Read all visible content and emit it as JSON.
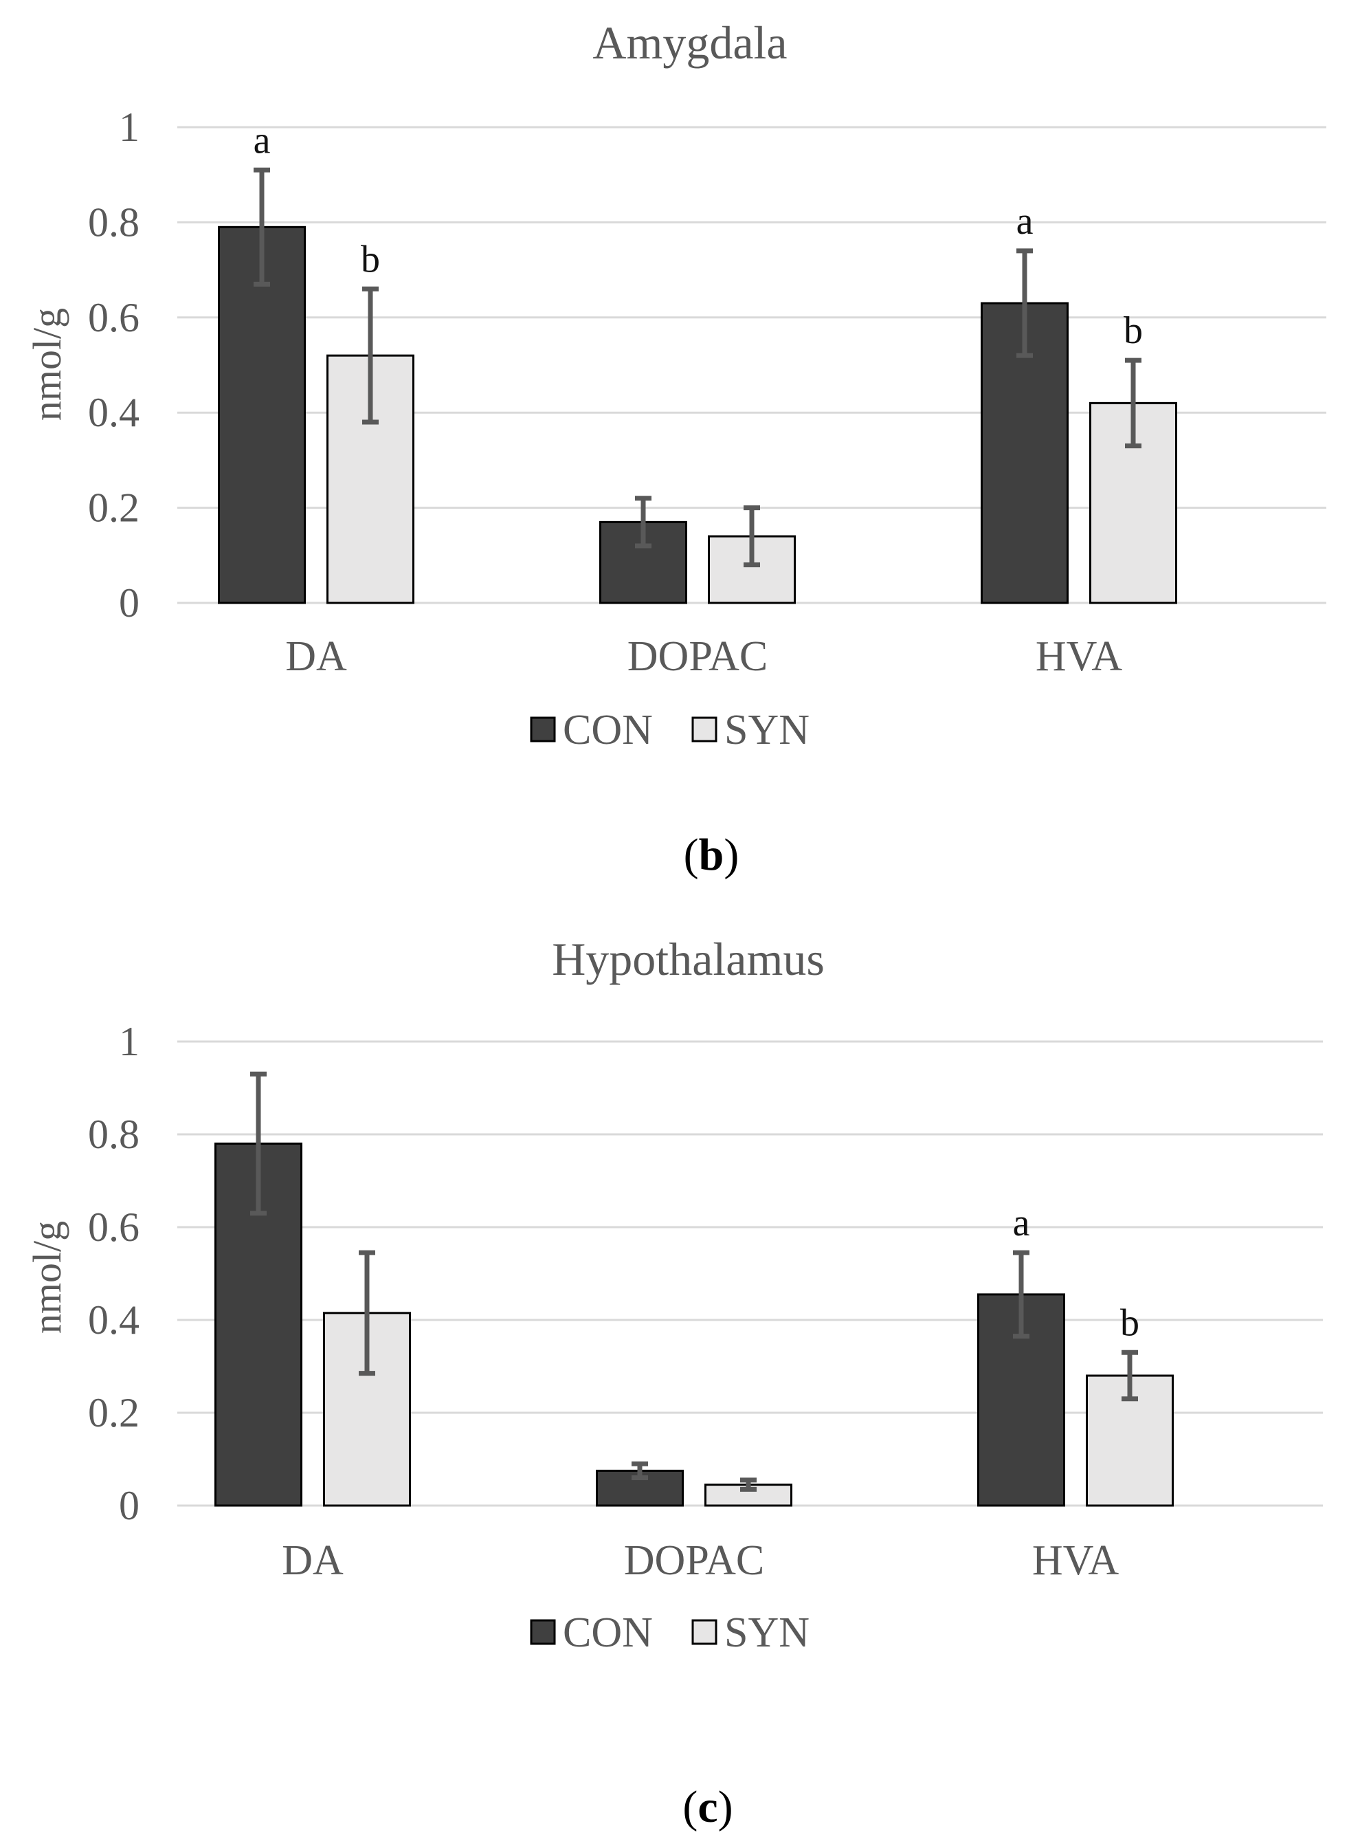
{
  "colors": {
    "con": "#404040",
    "syn": "#e7e6e6",
    "text": "#595959",
    "grid": "#d9d9d9",
    "error": "#595959"
  },
  "chart_data": [
    {
      "type": "bar",
      "title": "Amygdala",
      "ylabel": "nmol/g",
      "xlabel": "",
      "ylim": [
        0,
        1
      ],
      "yticks": [
        "0",
        "0.2",
        "0.4",
        "0.6",
        "0.8",
        "1"
      ],
      "categories": [
        "DA",
        "DOPAC",
        "HVA"
      ],
      "series": [
        {
          "name": "CON",
          "values": [
            0.79,
            0.17,
            0.63
          ],
          "errors": [
            0.12,
            0.05,
            0.11
          ],
          "letters": [
            "a",
            "",
            "a"
          ]
        },
        {
          "name": "SYN",
          "values": [
            0.52,
            0.14,
            0.42
          ],
          "errors": [
            0.14,
            0.06,
            0.09
          ],
          "letters": [
            "b",
            "",
            "b"
          ]
        }
      ],
      "legend": {
        "position": "bottom",
        "entries": [
          "CON",
          "SYN"
        ]
      },
      "grid": true
    },
    {
      "type": "bar",
      "title": "Hypothalamus",
      "ylabel": "nmol/g",
      "xlabel": "",
      "ylim": [
        0,
        1
      ],
      "yticks": [
        "0",
        "0.2",
        "0.4",
        "0.6",
        "0.8",
        "1"
      ],
      "categories": [
        "DA",
        "DOPAC",
        "HVA"
      ],
      "series": [
        {
          "name": "CON",
          "values": [
            0.78,
            0.075,
            0.455
          ],
          "errors": [
            0.15,
            0.015,
            0.09
          ],
          "letters": [
            "",
            "",
            "a"
          ]
        },
        {
          "name": "SYN",
          "values": [
            0.415,
            0.045,
            0.28
          ],
          "errors": [
            0.13,
            0.01,
            0.05
          ],
          "letters": [
            "",
            "",
            "b"
          ]
        }
      ],
      "legend": {
        "position": "bottom",
        "entries": [
          "CON",
          "SYN"
        ]
      },
      "grid": true
    }
  ],
  "panels": [
    {
      "open": "(",
      "letter": "b",
      "close": ")"
    },
    {
      "open": "(",
      "letter": "c",
      "close": ")"
    }
  ]
}
